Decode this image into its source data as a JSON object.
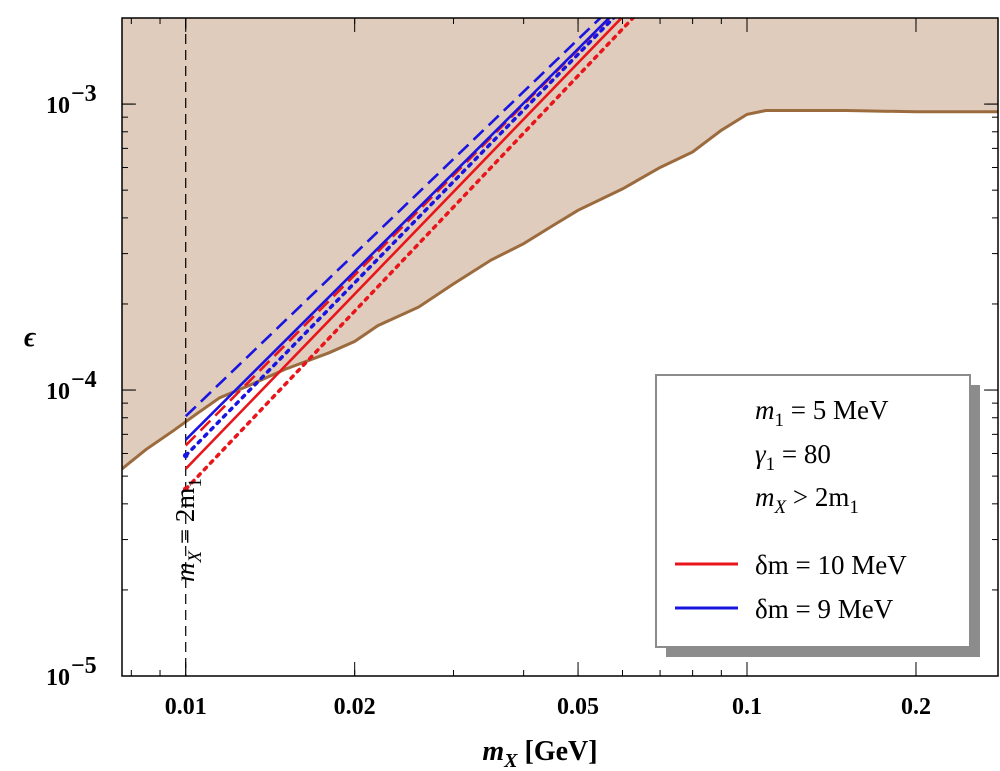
{
  "chart_data": {
    "type": "line",
    "x_scale": "log",
    "y_scale": "log",
    "xlim": [
      0.0077,
      0.28
    ],
    "ylim": [
      1e-05,
      0.002
    ],
    "xlabel": {
      "var": "m",
      "sub": "X",
      "unit": " [GeV]"
    },
    "ylabel": "ϵ",
    "x_ticks": [
      {
        "value": 0.01,
        "label": "0.01"
      },
      {
        "value": 0.02,
        "label": "0.02"
      },
      {
        "value": 0.05,
        "label": "0.05"
      },
      {
        "value": 0.1,
        "label": "0.1"
      },
      {
        "value": 0.2,
        "label": "0.2"
      }
    ],
    "y_ticks": [
      {
        "value": 0.0001,
        "mantissa": "10",
        "exp": "−4"
      },
      {
        "value": 0.001,
        "mantissa": "10",
        "exp": "−3"
      },
      {
        "value": 1e-05,
        "mantissa": "10",
        "exp": "−5"
      }
    ],
    "excluded_region": {
      "color": "#dfccbc",
      "edge_color": "#9b6b3e",
      "boundary": [
        [
          0.0077,
          5.3e-05
        ],
        [
          0.0085,
          6.2e-05
        ],
        [
          0.0095,
          7.2e-05
        ],
        [
          0.0105,
          8.3e-05
        ],
        [
          0.0115,
          9.4e-05
        ],
        [
          0.013,
          0.000104
        ],
        [
          0.015,
          0.000118
        ],
        [
          0.018,
          0.000135
        ],
        [
          0.02,
          0.000148
        ],
        [
          0.022,
          0.000168
        ],
        [
          0.026,
          0.000195
        ],
        [
          0.03,
          0.000235
        ],
        [
          0.035,
          0.000285
        ],
        [
          0.04,
          0.000325
        ],
        [
          0.045,
          0.000375
        ],
        [
          0.05,
          0.000425
        ],
        [
          0.06,
          0.000505
        ],
        [
          0.07,
          0.0006
        ],
        [
          0.08,
          0.00068
        ],
        [
          0.09,
          0.00081
        ],
        [
          0.1,
          0.00092
        ],
        [
          0.108,
          0.00095
        ],
        [
          0.15,
          0.00095
        ],
        [
          0.2,
          0.00094
        ],
        [
          0.28,
          0.00094
        ]
      ]
    },
    "series": [
      {
        "name": "δm = 10 MeV, solid",
        "color": "#e8151b",
        "style": "solid",
        "points": [
          [
            0.01,
            5.3e-05
          ],
          [
            0.064,
            0.0023
          ]
        ]
      },
      {
        "name": "δm = 10 MeV, dashed",
        "color": "#e8151b",
        "style": "dashed",
        "points": [
          [
            0.01,
            6.4e-05
          ],
          [
            0.061,
            0.0023
          ]
        ]
      },
      {
        "name": "δm = 10 MeV, dotted",
        "color": "#e8151b",
        "style": "dotted",
        "points": [
          [
            0.01,
            4.5e-05
          ],
          [
            0.067,
            0.0023
          ]
        ]
      },
      {
        "name": "δm = 9 MeV, solid",
        "color": "#1a14e0",
        "style": "solid",
        "points": [
          [
            0.01,
            6.7e-05
          ],
          [
            0.061,
            0.0023
          ]
        ]
      },
      {
        "name": "δm = 9 MeV, dashed",
        "color": "#1a14e0",
        "style": "dashed",
        "points": [
          [
            0.01,
            8.1e-05
          ],
          [
            0.059,
            0.0023
          ]
        ]
      },
      {
        "name": "δm = 9 MeV, dotted",
        "color": "#1a14e0",
        "style": "dotted",
        "points": [
          [
            0.01,
            5.9e-05
          ],
          [
            0.062,
            0.0023
          ]
        ]
      }
    ],
    "reference_line": {
      "x": 0.01,
      "label": "m",
      "label_sub": "X",
      "label_rest": " = 2m",
      "label_sub2": "1"
    },
    "legend": {
      "position": "bottom-right",
      "params": [
        {
          "var": "m",
          "sub": "1",
          "rest": " = 5 MeV"
        },
        {
          "var": "γ",
          "sub": "1",
          "rest": " = 80"
        },
        {
          "var": "m",
          "sub": "X",
          "rest": " > 2m",
          "sub2": "1"
        }
      ],
      "entries": [
        {
          "label": "δm = 10 MeV",
          "color": "#e8151b"
        },
        {
          "label": "δm = 9 MeV",
          "color": "#1a14e0"
        }
      ]
    }
  }
}
